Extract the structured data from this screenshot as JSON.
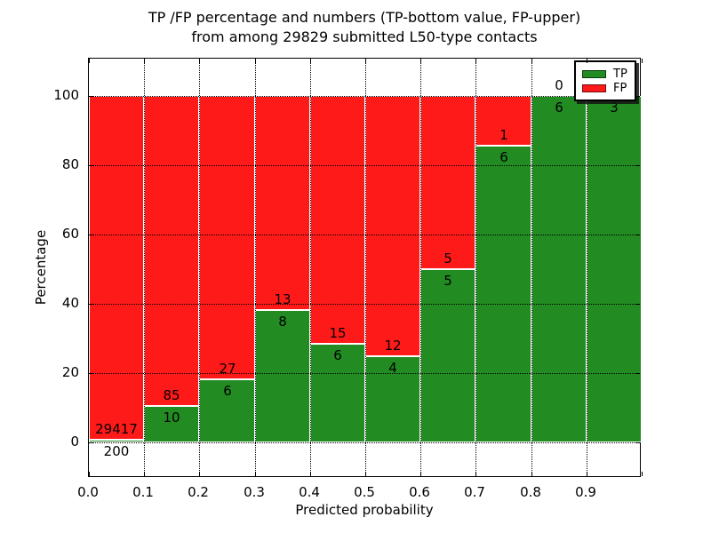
{
  "figure": {
    "title_line1": "TP /FP percentage and numbers (TP-bottom value, FP-upper)",
    "title_line2": "from among 29829 submitted L50-type contacts",
    "xlabel": "Predicted probability",
    "ylabel": "Percentage"
  },
  "legend": {
    "position": "upper right",
    "items": [
      {
        "label": "TP",
        "color": "#228b22"
      },
      {
        "label": "FP",
        "color": "#ff1a1a"
      }
    ]
  },
  "chart_data": {
    "type": "bar",
    "stacked": true,
    "normalized_to_percent": true,
    "title": "TP /FP percentage and numbers (TP-bottom value, FP-upper) from among 29829 submitted L50-type contacts",
    "xlabel": "Predicted probability",
    "ylabel": "Percentage",
    "total_submitted_contacts": 29829,
    "bin_edges": [
      0.0,
      0.1,
      0.2,
      0.3,
      0.4,
      0.5,
      0.6,
      0.7,
      0.8,
      0.9,
      1.0
    ],
    "x_tick_labels": [
      "0.0",
      "0.1",
      "0.2",
      "0.3",
      "0.4",
      "0.5",
      "0.6",
      "0.7",
      "0.8",
      "0.9"
    ],
    "y_tick_labels": [
      "0",
      "20",
      "40",
      "60",
      "80",
      "100"
    ],
    "y_tick_values": [
      0,
      20,
      40,
      60,
      80,
      100
    ],
    "xlim": [
      0.0,
      1.0
    ],
    "ylim": [
      -10.3,
      110.8
    ],
    "grid": true,
    "grid_style": "dotted",
    "legend_position": "upper right",
    "series": [
      {
        "name": "TP",
        "color": "#228b22",
        "counts": [
          200,
          10,
          6,
          8,
          6,
          4,
          5,
          6,
          6,
          3
        ]
      },
      {
        "name": "FP",
        "color": "#ff1a1a",
        "counts": [
          29417,
          85,
          27,
          13,
          15,
          12,
          5,
          1,
          0,
          0
        ]
      }
    ],
    "tp_percent_of_bin": [
      0.68,
      10.53,
      18.18,
      38.1,
      28.57,
      25.0,
      50.0,
      85.71,
      100.0,
      100.0
    ],
    "bar_total_percent": 100
  }
}
